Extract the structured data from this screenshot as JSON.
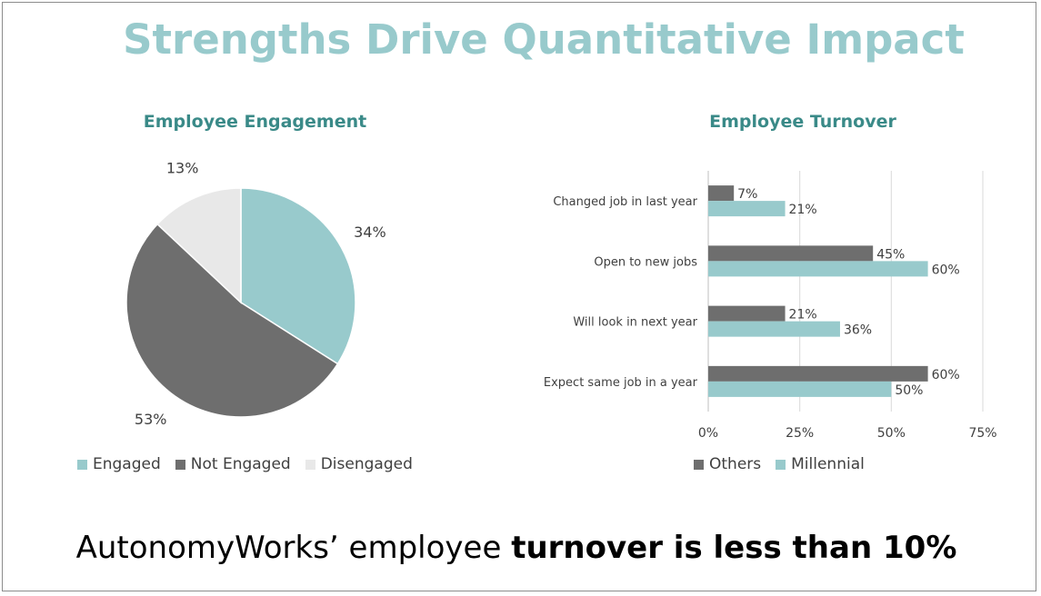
{
  "title": "Strengths Drive Quantitative Impact",
  "footer": {
    "text_plain": "AutonomyWorks’ employee ",
    "text_bold": "turnover is less than 10%"
  },
  "colors": {
    "teal": "#98cacc",
    "dark_gray": "#6e6e6e",
    "light_gray": "#e8e8e8",
    "title_teal": "#3a8a88"
  },
  "chart_data": [
    {
      "type": "pie",
      "title": "Employee Engagement",
      "categories": [
        "Engaged",
        "Not Engaged",
        "Disengaged"
      ],
      "values": [
        34,
        53,
        13
      ],
      "labels": [
        "34%",
        "53%",
        "13%"
      ],
      "colors": [
        "#98cacc",
        "#6e6e6e",
        "#e8e8e8"
      ],
      "legend_position": "bottom"
    },
    {
      "type": "bar",
      "orientation": "horizontal",
      "title": "Employee Turnover",
      "categories": [
        "Changed job in last year",
        "Open to new jobs",
        "Will look in next year",
        "Expect same job in a year"
      ],
      "series": [
        {
          "name": "Others",
          "values": [
            7,
            45,
            21,
            60
          ],
          "labels": [
            "7%",
            "45%",
            "21%",
            "60%"
          ],
          "color": "#6e6e6e"
        },
        {
          "name": "Millennial",
          "values": [
            21,
            60,
            36,
            50
          ],
          "labels": [
            "21%",
            "60%",
            "36%",
            "50%"
          ],
          "color": "#98cacc"
        }
      ],
      "xlim": [
        0,
        75
      ],
      "xticks": [
        "0%",
        "25%",
        "50%",
        "75%"
      ],
      "xtick_values": [
        0,
        25,
        50,
        75
      ],
      "grid": true,
      "legend_position": "bottom"
    }
  ]
}
